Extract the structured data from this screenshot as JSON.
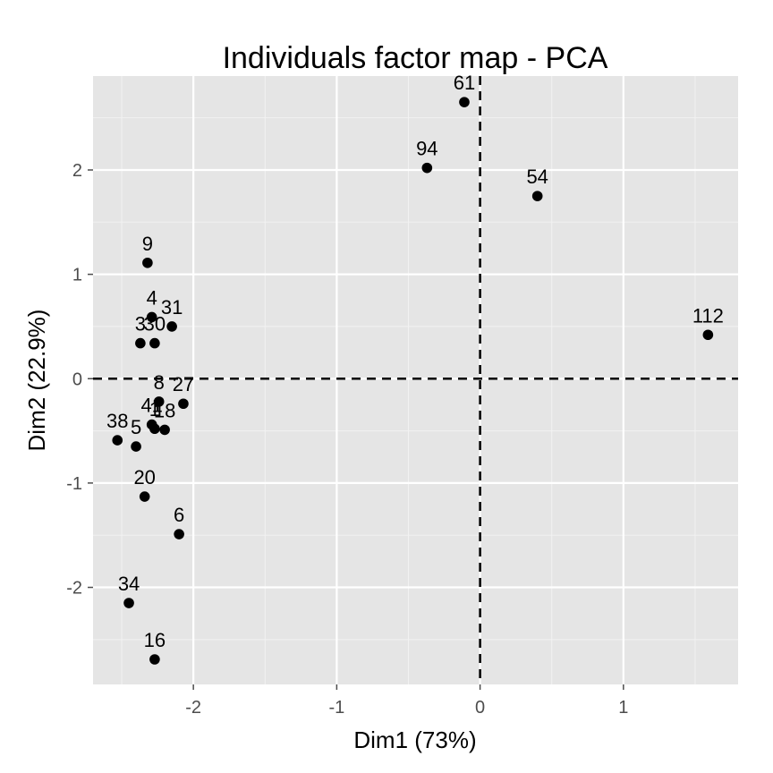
{
  "chart_data": {
    "type": "scatter",
    "title": "Individuals factor map - PCA",
    "xlabel": "Dim1 (73%)",
    "ylabel": "Dim2 (22.9%)",
    "xlim": [
      -2.7,
      1.8
    ],
    "ylim": [
      -2.93,
      2.9
    ],
    "x_ticks": [
      -2,
      -1,
      0,
      1
    ],
    "x_tick_labels": [
      "-2",
      "-1",
      "0",
      "1"
    ],
    "y_ticks": [
      -2,
      -1,
      0,
      1,
      2
    ],
    "y_tick_labels": [
      "-2",
      "-1",
      "0",
      "1",
      "2"
    ],
    "grid": true,
    "reference_lines": {
      "x": 0,
      "y": 0,
      "style": "dashed"
    },
    "colors": {
      "panel": "#e5e5e5",
      "grid": "#ffffff",
      "point": "#000000",
      "reference": "#000000"
    },
    "points": [
      {
        "label": "61",
        "x": -0.11,
        "y": 2.65
      },
      {
        "label": "94",
        "x": -0.37,
        "y": 2.02
      },
      {
        "label": "54",
        "x": 0.4,
        "y": 1.75
      },
      {
        "label": "112",
        "x": 1.59,
        "y": 0.42
      },
      {
        "label": "9",
        "x": -2.32,
        "y": 1.11
      },
      {
        "label": "4",
        "x": -2.29,
        "y": 0.59
      },
      {
        "label": "31",
        "x": -2.15,
        "y": 0.5
      },
      {
        "label": "3",
        "x": -2.37,
        "y": 0.34
      },
      {
        "label": "30",
        "x": -2.27,
        "y": 0.34
      },
      {
        "label": "8",
        "x": -2.24,
        "y": -0.22
      },
      {
        "label": "27",
        "x": -2.07,
        "y": -0.24
      },
      {
        "label": "41",
        "x": -2.29,
        "y": -0.44
      },
      {
        "label": "1",
        "x": -2.27,
        "y": -0.48
      },
      {
        "label": "18",
        "x": -2.2,
        "y": -0.49
      },
      {
        "label": "38",
        "x": -2.53,
        "y": -0.59
      },
      {
        "label": "5",
        "x": -2.4,
        "y": -0.65
      },
      {
        "label": "20",
        "x": -2.34,
        "y": -1.13
      },
      {
        "label": "6",
        "x": -2.1,
        "y": -1.49
      },
      {
        "label": "34",
        "x": -2.45,
        "y": -2.15
      },
      {
        "label": "16",
        "x": -2.27,
        "y": -2.69
      }
    ]
  }
}
